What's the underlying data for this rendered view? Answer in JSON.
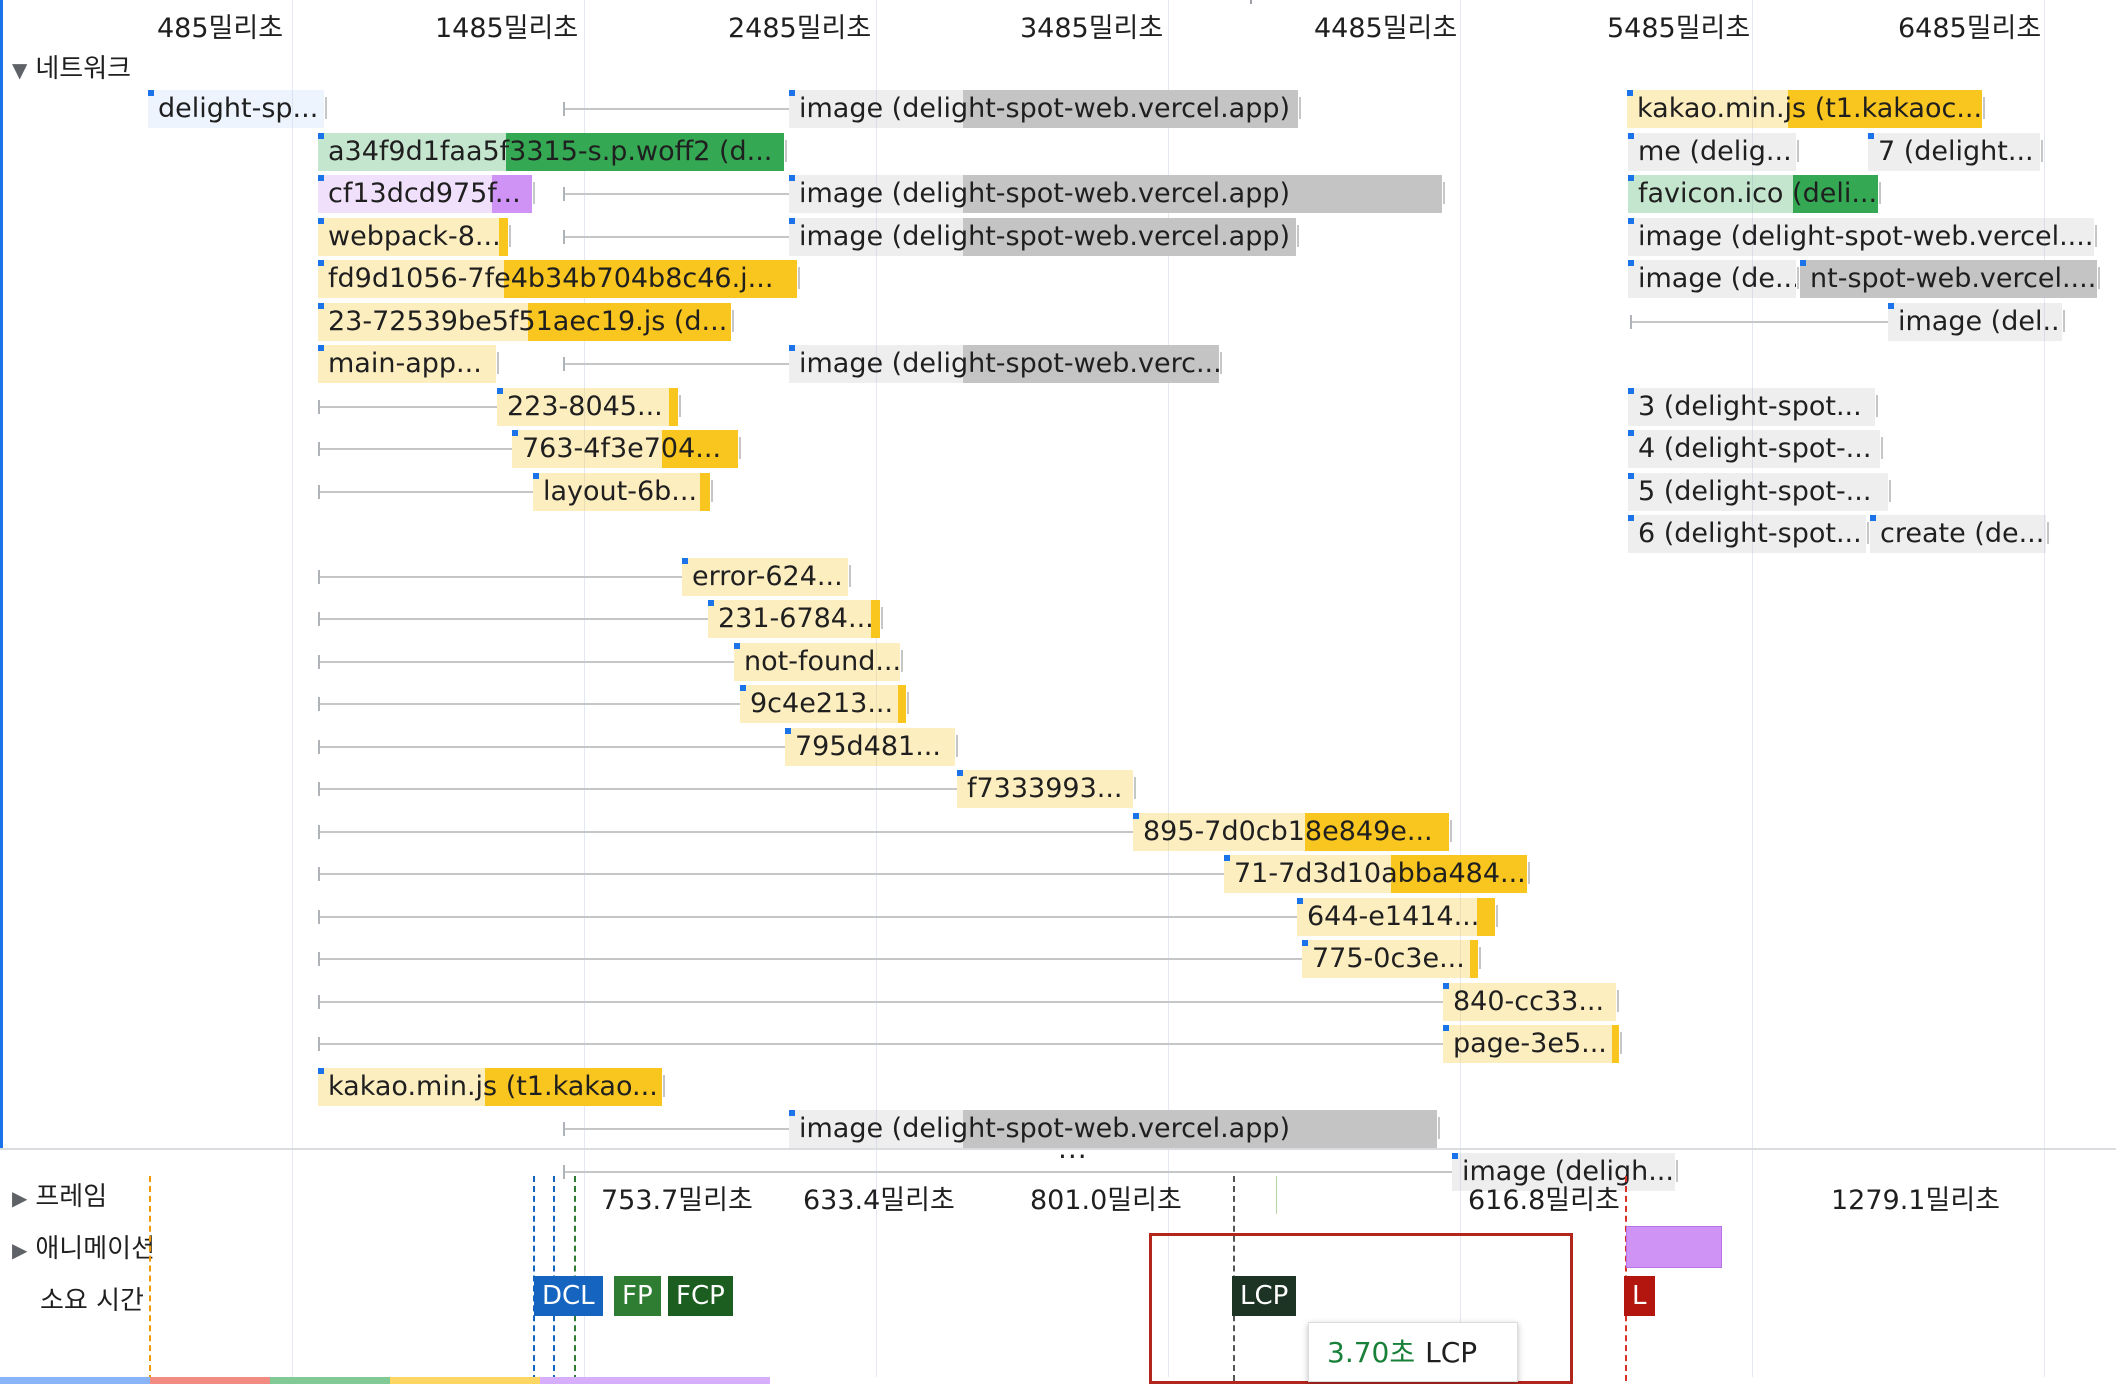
{
  "ruler": {
    "labels": [
      "485밀리초",
      "1485밀리초",
      "2485밀리초",
      "3485밀리초",
      "4485밀리초",
      "5485밀리초",
      "6485밀리초"
    ]
  },
  "tracks": {
    "network": "네트워크",
    "frames": "프레임",
    "animations": "애니메이션",
    "timings": "소요 시간"
  },
  "network_requests": [
    {
      "label": "delight-sp...",
      "color": "#c5dbfc"
    },
    {
      "label": "image (delight-spot-web.vercel.app)",
      "color": "#c4c4c4"
    },
    {
      "label": "kakao.min.js (t1.kakaoc...",
      "color": "#f9c51f"
    },
    {
      "label": "a34f9d1faa5f3315-s.p.woff2 (d...",
      "color": "#34a853"
    },
    {
      "label": "me (delig...",
      "color": "#c4c4c4"
    },
    {
      "label": "7 (delight...",
      "color": "#c4c4c4"
    },
    {
      "label": "cf13dcd975f...",
      "color": "#cf93f5"
    },
    {
      "label": "image (delight-spot-web.vercel.app)",
      "color": "#c4c4c4"
    },
    {
      "label": "favicon.ico (deli...",
      "color": "#34a853"
    },
    {
      "label": "webpack-8...",
      "color": "#f9c51f"
    },
    {
      "label": "image (delight-spot-web.vercel.app)",
      "color": "#c4c4c4"
    },
    {
      "label": "image (delight-spot-web.vercel....",
      "color": "#c4c4c4"
    },
    {
      "label": "fd9d1056-7fe4b34b704b8c46.j...",
      "color": "#f9c51f"
    },
    {
      "label": "image (de...",
      "color": "#c4c4c4"
    },
    {
      "label": "nt-spot-web.vercel....",
      "color": "#c4c4c4"
    },
    {
      "label": "23-72539be5f51aec19.js (d...",
      "color": "#f9c51f"
    },
    {
      "label": "image (del...",
      "color": "#c4c4c4"
    },
    {
      "label": "main-app...",
      "color": "#f9c51f"
    },
    {
      "label": "image (delight-spot-web.verc...",
      "color": "#c4c4c4"
    },
    {
      "label": "3 (delight-spot...",
      "color": "#c4c4c4"
    },
    {
      "label": "223-8045...",
      "color": "#f9c51f"
    },
    {
      "label": "4 (delight-spot-...",
      "color": "#c4c4c4"
    },
    {
      "label": "763-4f3e704...",
      "color": "#f9c51f"
    },
    {
      "label": "5 (delight-spot-...",
      "color": "#c4c4c4"
    },
    {
      "label": "layout-6b...",
      "color": "#f9c51f"
    },
    {
      "label": "6 (delight-spot...",
      "color": "#c4c4c4"
    },
    {
      "label": "create (de...",
      "color": "#c4c4c4"
    },
    {
      "label": "error-624...",
      "color": "#f9c51f"
    },
    {
      "label": "231-6784...",
      "color": "#f9c51f"
    },
    {
      "label": "not-found...",
      "color": "#f9c51f"
    },
    {
      "label": "9c4e213...",
      "color": "#f9c51f"
    },
    {
      "label": "795d481...",
      "color": "#f9c51f"
    },
    {
      "label": "f7333993...",
      "color": "#f9c51f"
    },
    {
      "label": "895-7d0cb18e849e...",
      "color": "#f9c51f"
    },
    {
      "label": "71-7d3d10abba484...",
      "color": "#f9c51f"
    },
    {
      "label": "644-e1414...",
      "color": "#f9c51f"
    },
    {
      "label": "775-0c3e...",
      "color": "#f9c51f"
    },
    {
      "label": "840-cc33...",
      "color": "#f9c51f"
    },
    {
      "label": "page-3e5...",
      "color": "#f9c51f"
    },
    {
      "label": "kakao.min.js (t1.kakao...",
      "color": "#f9c51f"
    },
    {
      "label": "image (delight-spot-web.vercel.app)",
      "color": "#c4c4c4"
    },
    {
      "label": "image (deligh...",
      "color": "#c4c4c4"
    }
  ],
  "more_indicator": "...",
  "frames": [
    "753.7밀리초",
    "633.4밀리초",
    "801.0밀리초",
    "616.8밀리초",
    "1279.1밀리초"
  ],
  "markers": [
    {
      "label": "DCL",
      "color": "#1565c0"
    },
    {
      "label": "FP",
      "color": "#2e7d32"
    },
    {
      "label": "FCP",
      "color": "#1b5e20"
    },
    {
      "label": "LCP",
      "color": "#1d3324"
    },
    {
      "label": "L",
      "color": "#b3160e"
    }
  ],
  "tooltip": {
    "time": "3.70초",
    "label": "LCP"
  },
  "colors": {
    "accent": "#1a73e8",
    "highlight": "#b3261e"
  }
}
